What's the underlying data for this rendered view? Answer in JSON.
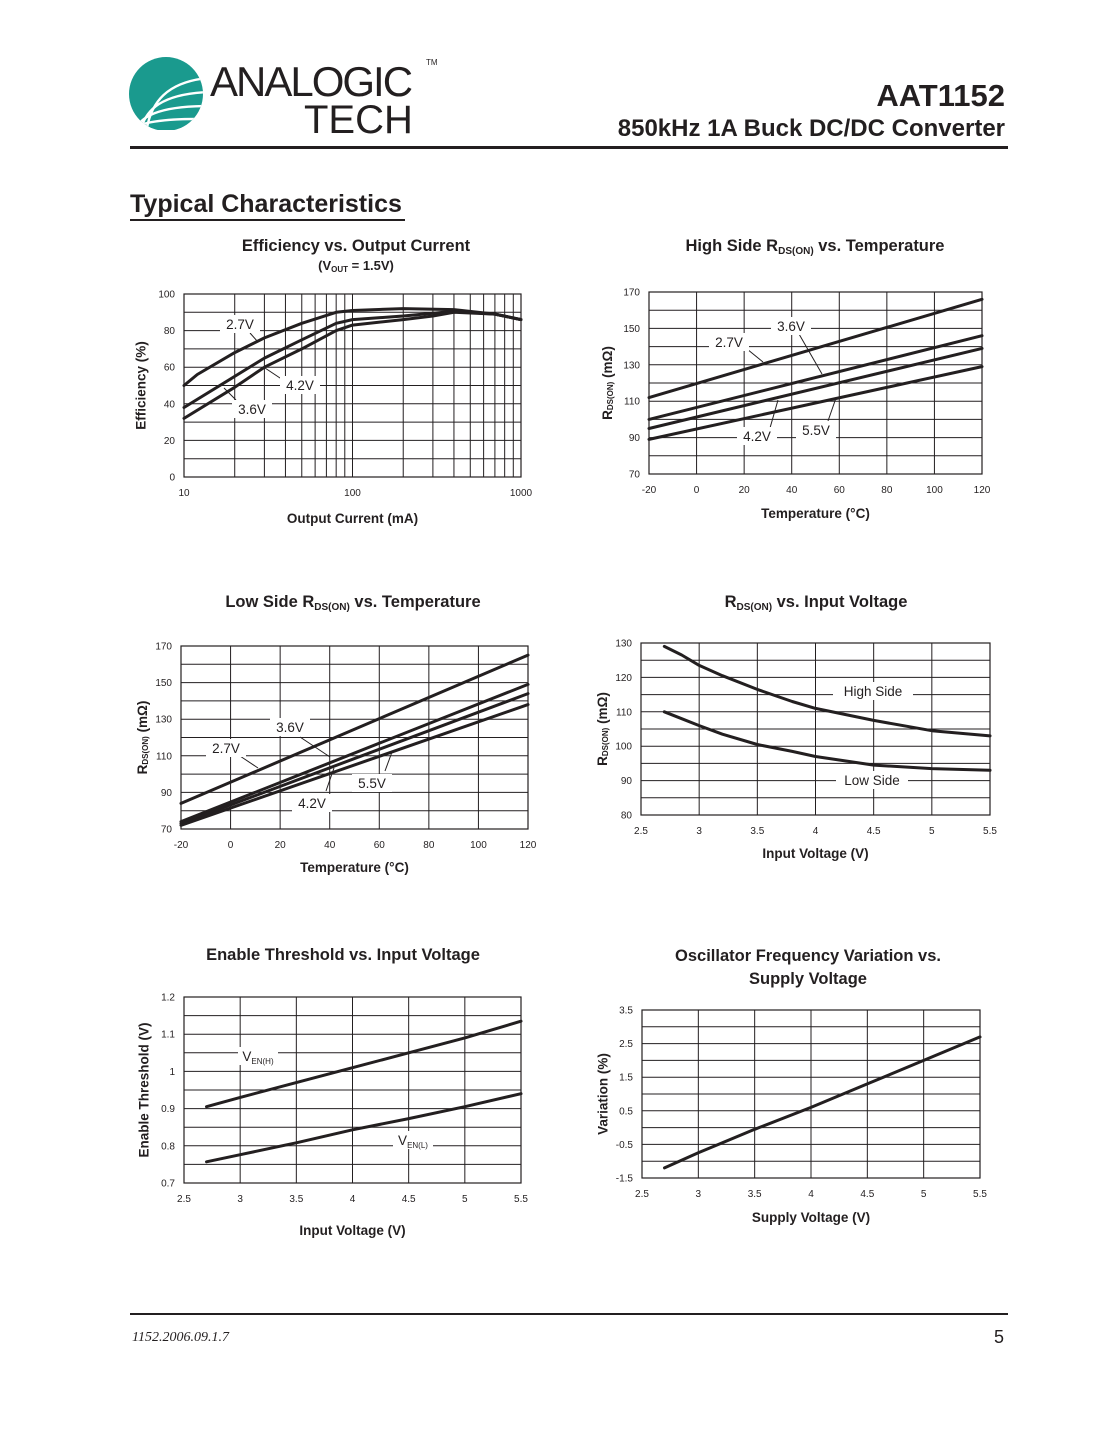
{
  "header": {
    "logo": {
      "line1": "ANALOGIC",
      "line2": "TECH",
      "tm": "TM",
      "color": "#1a9a8e"
    },
    "part_number": "AAT1152",
    "subtitle": "850kHz 1A Buck DC/DC Converter"
  },
  "section_title": "Typical Characteristics",
  "footer": {
    "doc_id": "1152.2006.09.1.7",
    "page": "5"
  },
  "chart_titles": [
    {
      "pre": "Efficiency vs. Output Current",
      "sub_pre": "(V",
      "sub_sub": "OUT",
      "sub_post": " = 1.5V)"
    },
    {
      "pre": "High Side R",
      "sub": "DS(ON)",
      "post": " vs. Temperature"
    },
    {
      "pre": "Low Side R",
      "sub": "DS(ON)",
      "post": " vs. Temperature"
    },
    {
      "pre": "R",
      "sub": "DS(ON)",
      "post": " vs. Input Voltage"
    },
    {
      "pre": "Enable Threshold vs. Input Voltage"
    },
    {
      "pre": "Oscillator Frequency Variation vs.",
      "line2": "Supply Voltage"
    }
  ],
  "chart_data": [
    {
      "type": "line",
      "title": "Efficiency vs. Output Current (VOUT = 1.5V)",
      "xlabel": "Output Current (mA)",
      "ylabel": "Efficiency (%)",
      "ylabel_sub": "",
      "xscale": "log",
      "xlim": [
        10,
        1000
      ],
      "ylim": [
        0,
        100
      ],
      "x_ticks": [
        "10",
        "100",
        "1000"
      ],
      "y_ticks": [
        "0",
        "20",
        "40",
        "60",
        "80",
        "100"
      ],
      "x_grid": [
        20,
        30,
        40,
        50,
        60,
        70,
        80,
        90,
        100,
        200,
        300,
        400,
        500,
        600,
        700,
        800,
        900
      ],
      "y_grid": [
        10,
        20,
        30,
        40,
        50,
        60,
        70,
        80,
        90
      ],
      "series": [
        {
          "name": "2.7V",
          "x": [
            10,
            12,
            20,
            30,
            50,
            80,
            100,
            200,
            400,
            700,
            1000
          ],
          "y": [
            50,
            56,
            68,
            76,
            84,
            90,
            91,
            92,
            91.5,
            89,
            86
          ]
        },
        {
          "name": "4.2V",
          "x": [
            10,
            20,
            30,
            50,
            80,
            100,
            200,
            300,
            400,
            700,
            1000
          ],
          "y": [
            38,
            55,
            65,
            75,
            84,
            86,
            88,
            89.5,
            90.5,
            89,
            86
          ]
        },
        {
          "name": "3.6V",
          "x": [
            10,
            20,
            30,
            50,
            80,
            100,
            200,
            300,
            400,
            700,
            1000
          ],
          "y": [
            32,
            49,
            60,
            70,
            80,
            83,
            86,
            88,
            90,
            89,
            86
          ]
        }
      ],
      "annotations": [
        {
          "text": "2.7V"
        },
        {
          "text": "4.2V"
        },
        {
          "text": "3.6V"
        }
      ]
    },
    {
      "type": "line",
      "title": "High Side RDS(ON) vs. Temperature",
      "xlabel": "Temperature (°C)",
      "ylabel": "R",
      "ylabel_sub": "DS(ON)",
      "ylabel_post": " (mΩ)",
      "xscale": "linear",
      "xlim": [
        -20,
        120
      ],
      "ylim": [
        70,
        170
      ],
      "x_ticks": [
        "-20",
        "0",
        "20",
        "40",
        "60",
        "80",
        "100",
        "120"
      ],
      "y_ticks": [
        "70",
        "90",
        "110",
        "130",
        "150",
        "170"
      ],
      "x_grid": [
        0,
        20,
        40,
        60,
        80,
        100
      ],
      "y_grid": [
        80,
        90,
        100,
        110,
        120,
        130,
        140,
        150,
        160
      ],
      "series": [
        {
          "name": "2.7V",
          "x": [
            -20,
            120
          ],
          "y": [
            112,
            166
          ]
        },
        {
          "name": "3.6V",
          "x": [
            -20,
            120
          ],
          "y": [
            100,
            146
          ]
        },
        {
          "name": "4.2V",
          "x": [
            -20,
            120
          ],
          "y": [
            95,
            139
          ]
        },
        {
          "name": "5.5V",
          "x": [
            -20,
            120
          ],
          "y": [
            89,
            129
          ]
        }
      ],
      "annotations": [
        {
          "text": "3.6V"
        },
        {
          "text": "2.7V"
        },
        {
          "text": "4.2V"
        },
        {
          "text": "5.5V"
        }
      ]
    },
    {
      "type": "line",
      "title": "Low Side RDS(ON) vs. Temperature",
      "xlabel": "Temperature (°C)",
      "ylabel": "R",
      "ylabel_sub": "DS(ON)",
      "ylabel_post": " (mΩ)",
      "xscale": "linear",
      "xlim": [
        -20,
        120
      ],
      "ylim": [
        70,
        170
      ],
      "x_ticks": [
        "-20",
        "0",
        "20",
        "40",
        "60",
        "80",
        "100",
        "120"
      ],
      "y_ticks": [
        "70",
        "90",
        "110",
        "130",
        "150",
        "170"
      ],
      "x_grid": [
        0,
        20,
        40,
        60,
        80,
        100
      ],
      "y_grid": [
        80,
        90,
        100,
        110,
        120,
        130,
        140,
        150,
        160
      ],
      "series": [
        {
          "name": "2.7V",
          "x": [
            -20,
            120
          ],
          "y": [
            84,
            165
          ]
        },
        {
          "name": "3.6V",
          "x": [
            -20,
            120
          ],
          "y": [
            74,
            149
          ]
        },
        {
          "name": "4.2V",
          "x": [
            -20,
            120
          ],
          "y": [
            73,
            144
          ]
        },
        {
          "name": "5.5V",
          "x": [
            -20,
            120
          ],
          "y": [
            72,
            138
          ]
        }
      ],
      "annotations": [
        {
          "text": "3.6V"
        },
        {
          "text": "2.7V"
        },
        {
          "text": "4.2V"
        },
        {
          "text": "5.5V"
        }
      ]
    },
    {
      "type": "line",
      "title": "RDS(ON) vs. Input Voltage",
      "xlabel": "Input Voltage (V)",
      "ylabel": "R",
      "ylabel_sub": "DS(ON)",
      "ylabel_post": " (mΩ)",
      "xscale": "linear",
      "xlim": [
        2.5,
        5.5
      ],
      "ylim": [
        80,
        130
      ],
      "x_ticks": [
        "2.5",
        "3",
        "3.5",
        "4",
        "4.5",
        "5",
        "5.5"
      ],
      "y_ticks": [
        "80",
        "90",
        "100",
        "110",
        "120",
        "130"
      ],
      "x_grid": [
        3,
        3.5,
        4,
        4.5,
        5
      ],
      "y_grid": [
        85,
        90,
        95,
        100,
        105,
        110,
        115,
        120,
        125
      ],
      "series": [
        {
          "name": "High Side",
          "x": [
            2.7,
            2.85,
            3,
            3.2,
            3.5,
            3.8,
            4,
            4.5,
            5,
            5.5
          ],
          "y": [
            129,
            126.5,
            123.5,
            120.5,
            116.5,
            113,
            111,
            107.5,
            104.5,
            103
          ]
        },
        {
          "name": "Low Side",
          "x": [
            2.7,
            2.85,
            3,
            3.2,
            3.5,
            3.8,
            4,
            4.5,
            5,
            5.5
          ],
          "y": [
            110,
            108,
            106,
            103.5,
            100.5,
            98.5,
            97,
            94.5,
            93.5,
            93
          ]
        }
      ],
      "annotations": [
        {
          "text": "High Side"
        },
        {
          "text": "Low Side"
        }
      ]
    },
    {
      "type": "line",
      "title": "Enable Threshold vs. Input Voltage",
      "xlabel": "Input Voltage (V)",
      "ylabel": "Enable Threshold (V)",
      "ylabel_sub": "",
      "xscale": "linear",
      "xlim": [
        2.5,
        5.5
      ],
      "ylim": [
        0.7,
        1.2
      ],
      "x_ticks": [
        "2.5",
        "3",
        "3.5",
        "4",
        "4.5",
        "5",
        "5.5"
      ],
      "y_ticks": [
        "0.7",
        "0.8",
        "0.9",
        "1",
        "1.1",
        "1.2"
      ],
      "x_grid": [
        3,
        3.5,
        4,
        4.5,
        5
      ],
      "y_grid": [
        0.75,
        0.8,
        0.85,
        0.9,
        0.95,
        1.0,
        1.05,
        1.1,
        1.15
      ],
      "series": [
        {
          "name": "VEN(H)",
          "x": [
            2.7,
            3,
            3.5,
            4,
            4.5,
            5,
            5.5
          ],
          "y": [
            0.905,
            0.93,
            0.97,
            1.01,
            1.05,
            1.09,
            1.135
          ]
        },
        {
          "name": "VEN(L)",
          "x": [
            2.7,
            3,
            3.5,
            4,
            4.5,
            5,
            5.5
          ],
          "y": [
            0.757,
            0.776,
            0.808,
            0.843,
            0.873,
            0.905,
            0.94
          ]
        }
      ],
      "annotations": [
        {
          "text": "V",
          "sub": "EN(H)"
        },
        {
          "text": "V",
          "sub": "EN(L)"
        }
      ]
    },
    {
      "type": "line",
      "title": "Oscillator Frequency Variation vs. Supply Voltage",
      "xlabel": "Supply Voltage (V)",
      "ylabel": "Variation (%)",
      "ylabel_sub": "",
      "xscale": "linear",
      "xlim": [
        2.5,
        5.5
      ],
      "ylim": [
        -1.5,
        3.5
      ],
      "x_ticks": [
        "2.5",
        "3",
        "3.5",
        "4",
        "4.5",
        "5",
        "5.5"
      ],
      "y_ticks": [
        "-1.5",
        "-0.5",
        "0.5",
        "1.5",
        "2.5",
        "3.5"
      ],
      "x_grid": [
        3,
        3.5,
        4,
        4.5,
        5
      ],
      "y_grid": [
        -1,
        -0.5,
        0,
        0.5,
        1,
        1.5,
        2,
        2.5,
        3
      ],
      "series": [
        {
          "name": "Variation",
          "x": [
            2.7,
            3,
            3.5,
            4,
            4.5,
            5,
            5.5
          ],
          "y": [
            -1.2,
            -0.75,
            -0.05,
            0.6,
            1.3,
            2.0,
            2.7
          ]
        }
      ],
      "annotations": []
    }
  ]
}
